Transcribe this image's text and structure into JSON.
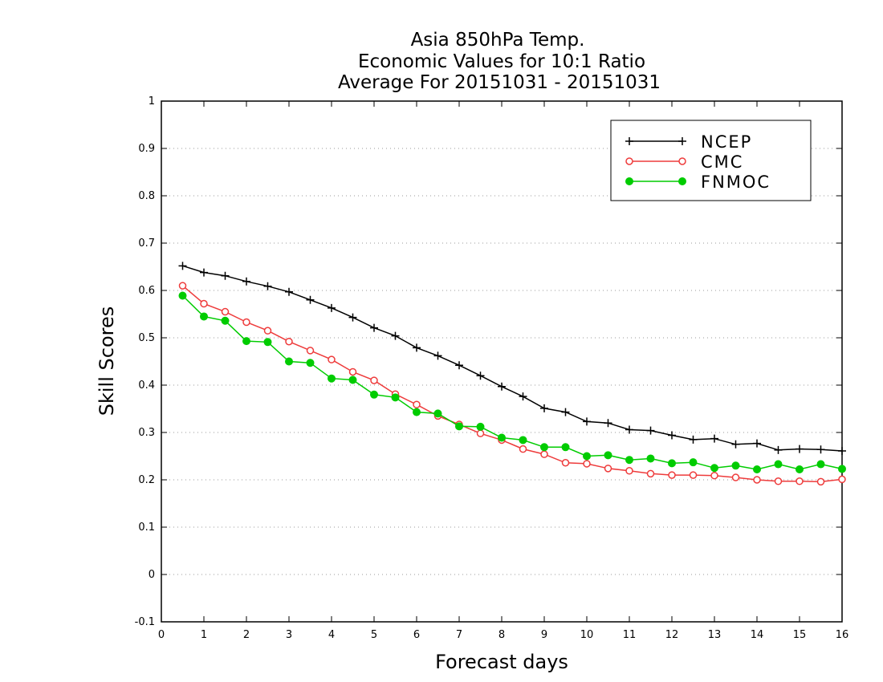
{
  "chart_data": {
    "type": "line",
    "title": [
      "Asia 850hPa Temp.",
      "Economic Values for 10:1 Ratio",
      "Average For 20151031 - 20151031"
    ],
    "xlabel": "Forecast days",
    "ylabel": "Skill Scores",
    "xlim": [
      0,
      16
    ],
    "ylim": [
      -0.1,
      1
    ],
    "xticks": [
      0,
      1,
      2,
      3,
      4,
      5,
      6,
      7,
      8,
      9,
      10,
      11,
      12,
      13,
      14,
      15,
      16
    ],
    "yticks": [
      -0.1,
      0,
      0.1,
      0.2,
      0.3,
      0.4,
      0.5,
      0.6,
      0.7,
      0.8,
      0.9,
      1
    ],
    "ytick_labels": [
      "-0.1",
      "0",
      "0.1",
      "0.2",
      "0.3",
      "0.4",
      "0.5",
      "0.6",
      "0.7",
      "0.8",
      "0.9",
      "1"
    ],
    "grid": "horizontal dotted",
    "legend_position": "top-right",
    "x": [
      0.5,
      1,
      1.5,
      2,
      2.5,
      3,
      3.5,
      4,
      4.5,
      5,
      5.5,
      6,
      6.5,
      7,
      7.5,
      8,
      8.5,
      9,
      9.5,
      10,
      10.5,
      11,
      11.5,
      12,
      12.5,
      13,
      13.5,
      14,
      14.5,
      15,
      15.5,
      16
    ],
    "series": [
      {
        "name": "NCEP",
        "color": "#000000",
        "marker": "plus",
        "values": [
          0.652,
          0.638,
          0.631,
          0.619,
          0.609,
          0.597,
          0.58,
          0.563,
          0.543,
          0.521,
          0.504,
          0.479,
          0.462,
          0.442,
          0.42,
          0.397,
          0.376,
          0.351,
          0.343,
          0.323,
          0.32,
          0.306,
          0.304,
          0.294,
          0.285,
          0.287,
          0.275,
          0.277,
          0.263,
          0.265,
          0.264,
          0.261
        ]
      },
      {
        "name": "CMC",
        "color": "#ee3b3b",
        "marker": "open-circle",
        "values": [
          0.61,
          0.572,
          0.555,
          0.533,
          0.515,
          0.492,
          0.473,
          0.454,
          0.428,
          0.41,
          0.381,
          0.359,
          0.335,
          0.317,
          0.298,
          0.284,
          0.265,
          0.254,
          0.236,
          0.234,
          0.224,
          0.219,
          0.213,
          0.21,
          0.21,
          0.209,
          0.205,
          0.2,
          0.197,
          0.197,
          0.196,
          0.201
        ]
      },
      {
        "name": "FNMOC",
        "color": "#00cc00",
        "marker": "filled-circle",
        "values": [
          0.589,
          0.545,
          0.536,
          0.493,
          0.491,
          0.45,
          0.447,
          0.414,
          0.411,
          0.38,
          0.374,
          0.343,
          0.34,
          0.313,
          0.312,
          0.289,
          0.284,
          0.269,
          0.269,
          0.25,
          0.252,
          0.242,
          0.245,
          0.235,
          0.237,
          0.225,
          0.23,
          0.222,
          0.233,
          0.222,
          0.233,
          0.223
        ]
      }
    ]
  }
}
